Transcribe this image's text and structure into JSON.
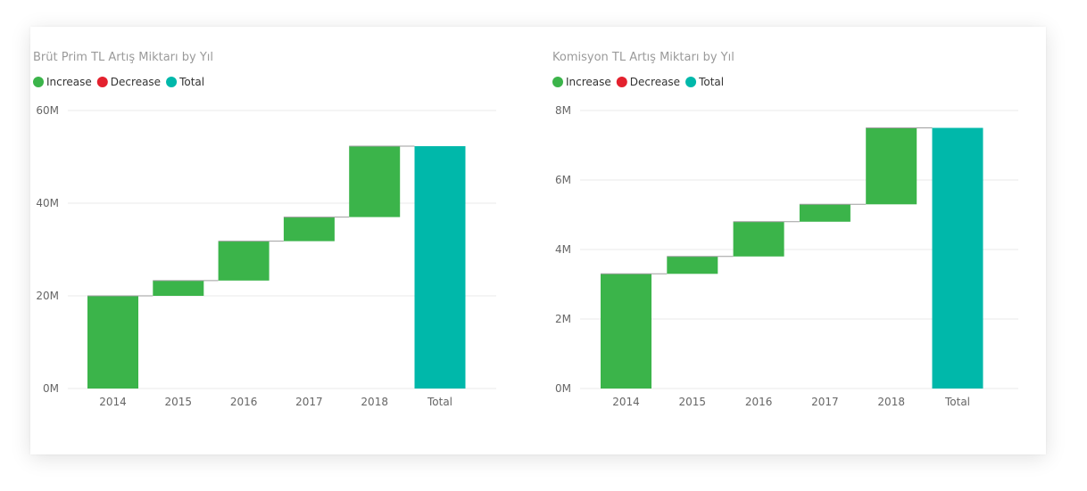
{
  "colors": {
    "increase": "#3BB44A",
    "decrease": "#E3212E",
    "total": "#00B8AA"
  },
  "legend": {
    "increase": "Increase",
    "decrease": "Decrease",
    "total": "Total"
  },
  "chart_data": [
    {
      "type": "waterfall",
      "title": "Brüt Prim TL Artış Miktarı by Yıl",
      "categories": [
        "2014",
        "2015",
        "2016",
        "2017",
        "2018",
        "Total"
      ],
      "values": [
        20.0,
        3.3,
        8.5,
        5.2,
        15.3,
        52.3
      ],
      "kinds": [
        "increase",
        "increase",
        "increase",
        "increase",
        "increase",
        "total"
      ],
      "ylim": [
        0,
        60
      ],
      "yticks": [
        0,
        20,
        40,
        60
      ],
      "ytick_labels": [
        "0M",
        "20M",
        "40M",
        "60M"
      ],
      "grid": true,
      "legend_position": "top-left"
    },
    {
      "type": "waterfall",
      "title": "Komisyon TL Artış Miktarı by Yıl",
      "categories": [
        "2014",
        "2015",
        "2016",
        "2017",
        "2018",
        "Total"
      ],
      "values": [
        3.3,
        0.5,
        1.0,
        0.5,
        2.2,
        7.5
      ],
      "kinds": [
        "increase",
        "increase",
        "increase",
        "increase",
        "increase",
        "total"
      ],
      "ylim": [
        0,
        8
      ],
      "yticks": [
        0,
        2,
        4,
        6,
        8
      ],
      "ytick_labels": [
        "0M",
        "2M",
        "4M",
        "6M",
        "8M"
      ],
      "grid": true,
      "legend_position": "top-left"
    }
  ]
}
